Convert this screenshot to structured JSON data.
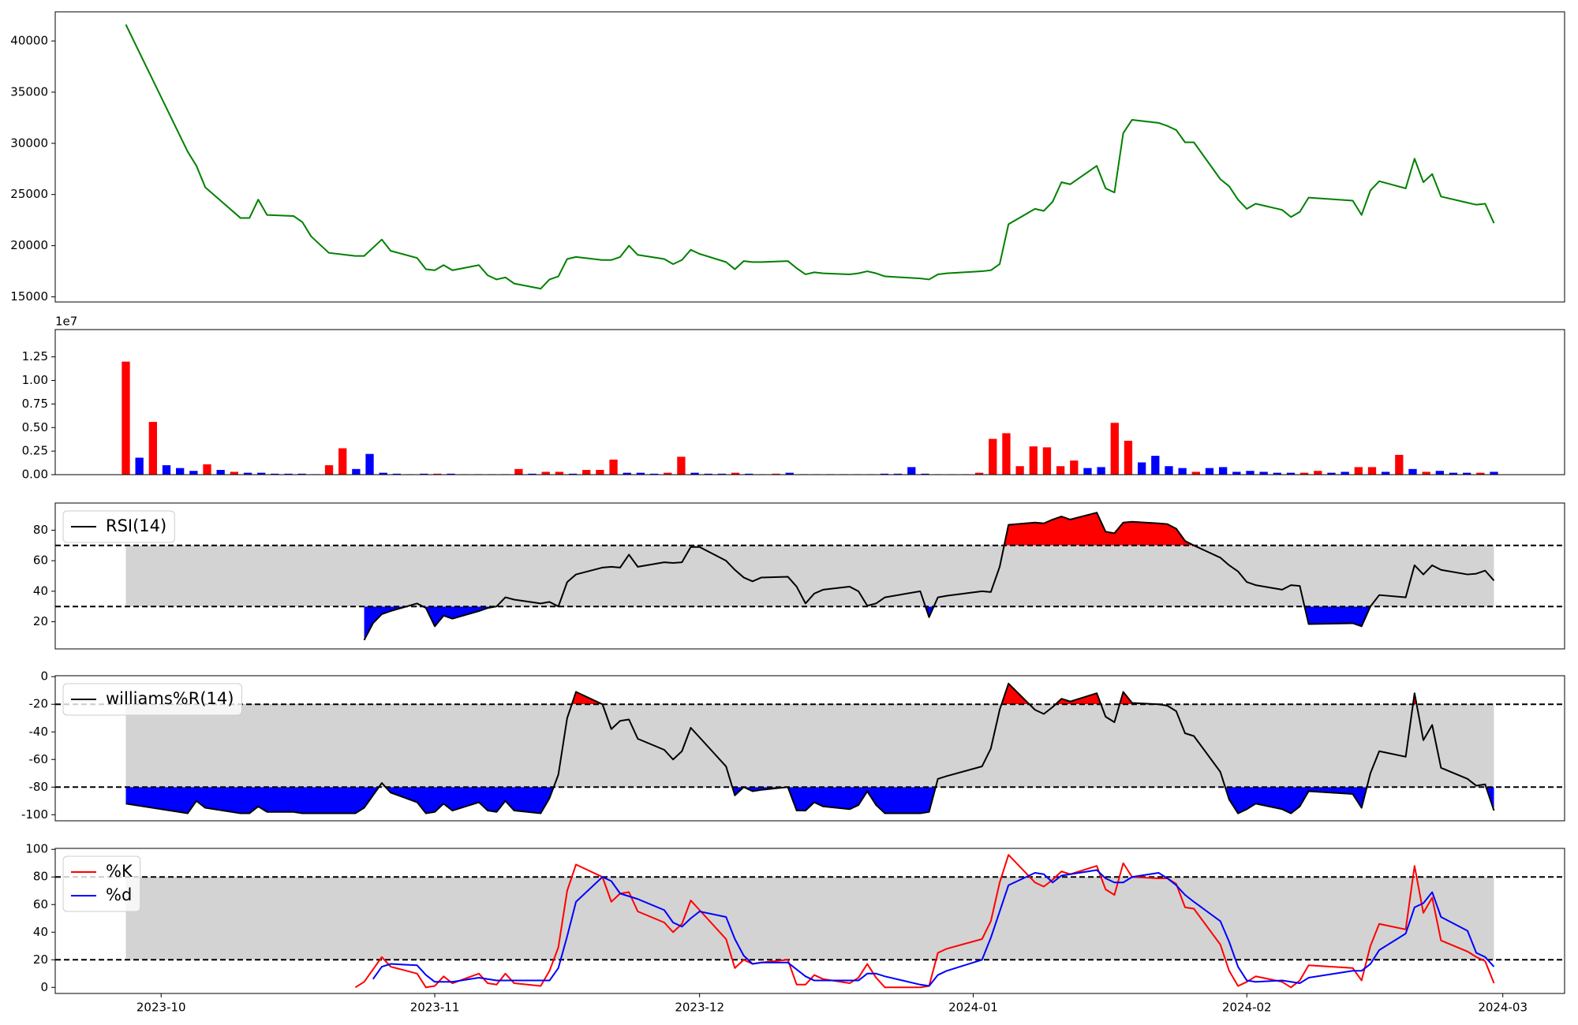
{
  "chart_data": {
    "x": [
      "2023-09-27",
      "2023-10-04",
      "2023-10-05",
      "2023-10-06",
      "2023-10-10",
      "2023-10-11",
      "2023-10-12",
      "2023-10-13",
      "2023-10-16",
      "2023-10-17",
      "2023-10-18",
      "2023-10-19",
      "2023-10-20",
      "2023-10-23",
      "2023-10-24",
      "2023-10-25",
      "2023-10-26",
      "2023-10-27",
      "2023-10-30",
      "2023-10-31",
      "2023-11-01",
      "2023-11-02",
      "2023-11-03",
      "2023-11-06",
      "2023-11-07",
      "2023-11-08",
      "2023-11-09",
      "2023-11-10",
      "2023-11-13",
      "2023-11-14",
      "2023-11-15",
      "2023-11-16",
      "2023-11-17",
      "2023-11-20",
      "2023-11-21",
      "2023-11-22",
      "2023-11-23",
      "2023-11-24",
      "2023-11-27",
      "2023-11-28",
      "2023-11-29",
      "2023-11-30",
      "2023-12-01",
      "2023-12-04",
      "2023-12-05",
      "2023-12-06",
      "2023-12-07",
      "2023-12-08",
      "2023-12-11",
      "2023-12-12",
      "2023-12-13",
      "2023-12-14",
      "2023-12-15",
      "2023-12-18",
      "2023-12-19",
      "2023-12-20",
      "2023-12-21",
      "2023-12-22",
      "2023-12-26",
      "2023-12-27",
      "2023-12-28",
      "2023-12-29",
      "2024-01-02",
      "2024-01-03",
      "2024-01-04",
      "2024-01-05",
      "2024-01-08",
      "2024-01-09",
      "2024-01-10",
      "2024-01-11",
      "2024-01-12",
      "2024-01-15",
      "2024-01-16",
      "2024-01-17",
      "2024-01-18",
      "2024-01-19",
      "2024-01-22",
      "2024-01-23",
      "2024-01-24",
      "2024-01-25",
      "2024-01-26",
      "2024-01-29",
      "2024-01-30",
      "2024-01-31",
      "2024-02-01",
      "2024-02-02",
      "2024-02-05",
      "2024-02-06",
      "2024-02-07",
      "2024-02-08",
      "2024-02-13",
      "2024-02-14",
      "2024-02-15",
      "2024-02-16",
      "2024-02-19",
      "2024-02-20",
      "2024-02-21",
      "2024-02-22",
      "2024-02-23",
      "2024-02-26",
      "2024-02-27",
      "2024-02-28",
      "2024-02-29"
    ],
    "xlim": [
      "2023-09-19",
      "2024-03-08"
    ],
    "xticks": [
      {
        "value": "2023-10-01",
        "label": "2023-10"
      },
      {
        "value": "2023-11-01",
        "label": "2023-11"
      },
      {
        "value": "2023-12-01",
        "label": "2023-12"
      },
      {
        "value": "2024-01-01",
        "label": "2024-01"
      },
      {
        "value": "2024-02-01",
        "label": "2024-02"
      },
      {
        "value": "2024-03-01",
        "label": "2024-03"
      }
    ],
    "panels": [
      {
        "type": "line",
        "ylim": [
          14500,
          42850
        ],
        "yticks": [
          15000,
          20000,
          25000,
          30000,
          35000,
          40000
        ],
        "series": [
          {
            "color": "green",
            "values": [
              41600,
              29200,
              27800,
              25700,
              22700,
              22700,
              24500,
              23000,
              22900,
              22300,
              20900,
              20100,
              19300,
              19000,
              19000,
              19800,
              20600,
              19500,
              18800,
              17700,
              17600,
              18100,
              17600,
              18100,
              17100,
              16700,
              16900,
              16300,
              15800,
              16700,
              17000,
              18700,
              18900,
              18600,
              18600,
              18900,
              20000,
              19100,
              18700,
              18200,
              18600,
              19600,
              19200,
              18400,
              17700,
              18500,
              18400,
              18400,
              18500,
              17800,
              17200,
              17400,
              17300,
              17200,
              17300,
              17500,
              17300,
              17000,
              16800,
              16700,
              17200,
              17300,
              17500,
              17600,
              18200,
              22100,
              23600,
              23400,
              24300,
              26200,
              26000,
              27800,
              25600,
              25200,
              31000,
              32300,
              32000,
              31700,
              31300,
              30100,
              30100,
              26500,
              25800,
              24500,
              23600,
              24100,
              23500,
              22800,
              23300,
              24700,
              24400,
              23000,
              25400,
              26300,
              25600,
              28500,
              26200,
              27000,
              24800,
              24200,
              24000,
              24100,
              22200
            ]
          }
        ]
      },
      {
        "type": "bar",
        "ylim": [
          0,
          1.54
        ],
        "offset_label": "1e7",
        "yticks": [
          {
            "value": 0,
            "label": "0.00"
          },
          0.25,
          {
            "value": 0.5,
            "label": "0.50"
          },
          0.75,
          {
            "value": 1,
            "label": "1.00"
          },
          1.25
        ],
        "values": [
          1.2,
          0.18,
          0.56,
          0.1,
          0.07,
          0.04,
          0.11,
          0.05,
          0.03,
          0.02,
          0.02,
          0.01,
          0.01,
          0.01,
          0.005,
          0.1,
          0.28,
          0.06,
          0.22,
          0.02,
          0.01,
          0.005,
          0.01,
          0.01,
          0.01,
          0.005,
          0.005,
          0.005,
          0.005,
          0.06,
          0.01,
          0.03,
          0.03,
          0.01,
          0.05,
          0.05,
          0.16,
          0.02,
          0.02,
          0.01,
          0.02,
          0.19,
          0.02,
          0.01,
          0.01,
          0.02,
          0.01,
          0.005,
          0.01,
          0.02,
          0.005,
          0.005,
          0.005,
          0.005,
          0.005,
          0.005,
          0.01,
          0.01,
          0.08,
          0.01,
          0.005,
          0.005,
          0.005,
          0.02,
          0.38,
          0.44,
          0.09,
          0.3,
          0.29,
          0.09,
          0.15,
          0.07,
          0.08,
          0.55,
          0.36,
          0.13,
          0.2,
          0.09,
          0.07,
          0.03,
          0.07,
          0.08,
          0.03,
          0.04,
          0.03,
          0.02,
          0.02,
          0.02,
          0.04,
          0.02,
          0.03,
          0.08,
          0.08,
          0.03,
          0.21,
          0.06,
          0.03,
          0.04,
          0.02,
          0.02,
          0.02,
          0.03
        ],
        "bar_colors": [
          "red",
          "blue",
          "red",
          "blue",
          "blue",
          "blue",
          "red",
          "blue",
          "red",
          "blue",
          "blue",
          "blue",
          "blue",
          "blue",
          "blue",
          "red",
          "red",
          "blue",
          "blue",
          "blue",
          "blue",
          "red",
          "blue",
          "red",
          "blue",
          "red",
          "blue",
          "red",
          "blue",
          "red",
          "blue",
          "red",
          "red",
          "blue",
          "red",
          "red",
          "red",
          "blue",
          "blue",
          "blue",
          "red",
          "red",
          "blue",
          "blue",
          "blue",
          "red",
          "blue",
          "red",
          "red",
          "blue",
          "blue",
          "red",
          "blue",
          "red",
          "red",
          "red",
          "blue",
          "blue",
          "blue",
          "blue",
          "red",
          "red",
          "red",
          "red",
          "red",
          "red",
          "red",
          "red",
          "red",
          "red",
          "red",
          "blue",
          "blue",
          "red",
          "red",
          "blue",
          "blue",
          "blue",
          "blue",
          "red",
          "blue",
          "blue",
          "blue",
          "blue",
          "blue",
          "blue",
          "blue",
          "red",
          "red",
          "blue",
          "blue",
          "red",
          "red",
          "blue",
          "red",
          "blue",
          "red",
          "blue",
          "blue",
          "blue",
          "red",
          "blue"
        ]
      },
      {
        "type": "oscillator",
        "ylim": [
          2.2,
          97.8
        ],
        "yticks": [
          20,
          40,
          60,
          80
        ],
        "levels": [
          30,
          70
        ],
        "band_color": "lightgray",
        "above_color": "red",
        "below_color": "blue",
        "legend": "upper left",
        "series": [
          {
            "name": "RSI(14)",
            "color": "black",
            "values": [
              null,
              null,
              null,
              null,
              null,
              null,
              null,
              null,
              null,
              null,
              null,
              null,
              null,
              null,
              8,
              19,
              25,
              27,
              32,
              29,
              17,
              24,
              22,
              27,
              29,
              30,
              36,
              34.5,
              32,
              33,
              30,
              46,
              51,
              55.5,
              56,
              55.5,
              64,
              56,
              59,
              58.5,
              59,
              69,
              69,
              60,
              54,
              49,
              46.5,
              49,
              49.5,
              43,
              32,
              38.5,
              41,
              43,
              40,
              30.5,
              32,
              36,
              40,
              23,
              36,
              37,
              40,
              39.5,
              56,
              83.5,
              85,
              84.5,
              87,
              89,
              87,
              91.5,
              79,
              78,
              85,
              85.5,
              84.5,
              84,
              81,
              73,
              70,
              62,
              57,
              53,
              46,
              44,
              41,
              44,
              43.5,
              18.5,
              19,
              17,
              30,
              37.5,
              36,
              57,
              51,
              57,
              54,
              51,
              51.5,
              53.5,
              47
            ]
          }
        ]
      },
      {
        "type": "oscillator",
        "ylim": [
          -104.4,
          0.7
        ],
        "yticks": [
          0,
          -20,
          -40,
          -60,
          -80,
          -100
        ],
        "levels": [
          -80,
          -20
        ],
        "band_color": "lightgray",
        "above_color": "red",
        "below_color": "blue",
        "legend": "upper left",
        "series": [
          {
            "name": "williams%R(14)",
            "color": "black",
            "values": [
              -92,
              -99,
              -90,
              -95,
              -99,
              -99,
              -94,
              -98,
              -98,
              -99,
              -99,
              -99,
              -99,
              -99,
              -95,
              -86,
              -77,
              -84,
              -91,
              -99,
              -98,
              -92,
              -97,
              -91,
              -97,
              -98,
              -90,
              -97,
              -99,
              -88,
              -71,
              -30,
              -11,
              -20,
              -38,
              -32,
              -31,
              -45,
              -53,
              -60,
              -54,
              -37,
              -44,
              -65,
              -86,
              -80,
              -83,
              -82,
              -80,
              -97,
              -97,
              -91,
              -94,
              -96,
              -93,
              -83,
              -93,
              -99,
              -99,
              -98,
              -74,
              -72,
              -65,
              -52,
              -24,
              -5,
              -24,
              -27,
              -22,
              -16,
              -18,
              -12,
              -29,
              -33,
              -11,
              -19,
              -20,
              -21,
              -25,
              -41,
              -43,
              -69,
              -89,
              -99,
              -96,
              -92,
              -96,
              -99,
              -94,
              -83,
              -85,
              -95,
              -70,
              -54,
              -58,
              -12,
              -46,
              -35,
              -66,
              -74,
              -79,
              -78,
              -97
            ]
          }
        ]
      },
      {
        "type": "oscillator",
        "ylim": [
          -4.4,
          100.7
        ],
        "yticks": [
          0,
          20,
          40,
          60,
          80,
          100
        ],
        "levels": [
          20,
          80
        ],
        "band_color": "lightgray",
        "legend": "upper left",
        "series": [
          {
            "name": "%K",
            "color": "red",
            "values": [
              null,
              null,
              null,
              null,
              null,
              null,
              null,
              null,
              null,
              null,
              null,
              null,
              null,
              0,
              4,
              13,
              22,
              15,
              10,
              0,
              1,
              8,
              3,
              10,
              3,
              2,
              10,
              3,
              1,
              12,
              29,
              70,
              89,
              80,
              62,
              68,
              69,
              55,
              47,
              40,
              46,
              63,
              56,
              35,
              14,
              20,
              17,
              18,
              20,
              2,
              2,
              9,
              6,
              3,
              7,
              17,
              7,
              0,
              0,
              1,
              25,
              28,
              35,
              48,
              76,
              96,
              76,
              73,
              78,
              84,
              82,
              88,
              71,
              67,
              90,
              80,
              79,
              79,
              75,
              58,
              57,
              31,
              12,
              1,
              4,
              8,
              4,
              0,
              5,
              16,
              14,
              5,
              30,
              46,
              42,
              88,
              54,
              65,
              34,
              26,
              22,
              19,
              3
            ]
          },
          {
            "name": "%d",
            "color": "blue",
            "values": [
              null,
              null,
              null,
              null,
              null,
              null,
              null,
              null,
              null,
              null,
              null,
              null,
              null,
              null,
              null,
              6,
              15,
              17,
              16,
              9,
              4,
              4,
              4,
              7,
              6,
              5,
              5,
              5,
              5,
              5,
              14,
              37,
              62,
              80,
              77,
              68,
              66,
              64,
              56,
              47,
              44,
              50,
              55,
              51,
              35,
              23,
              17,
              18,
              18,
              13,
              8,
              5,
              5,
              5,
              5,
              10,
              10,
              8,
              2,
              1,
              9,
              12,
              20,
              36,
              55,
              74,
              83,
              82,
              76,
              81,
              82,
              85,
              79,
              76,
              76,
              80,
              83,
              79,
              74,
              67,
              62,
              48,
              33,
              15,
              5,
              4,
              5,
              4,
              3,
              7,
              12,
              12,
              17,
              27,
              39,
              58,
              61,
              69,
              51,
              41,
              25,
              22,
              15
            ]
          }
        ]
      }
    ]
  }
}
